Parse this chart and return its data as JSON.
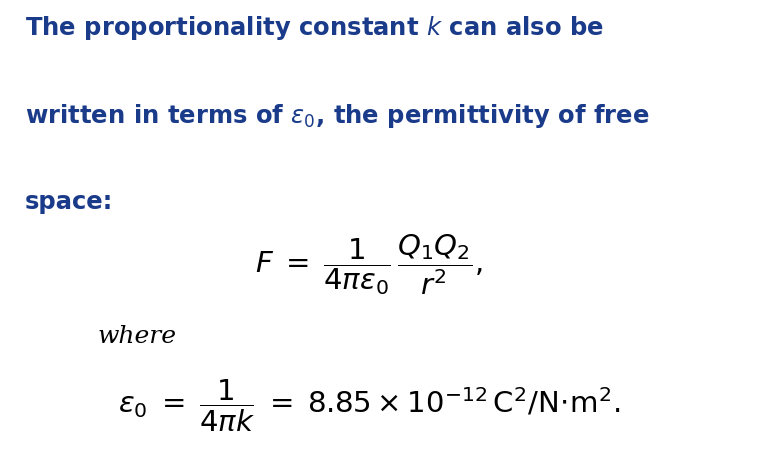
{
  "background_color": "#ffffff",
  "title_color": "#1a3a8a",
  "formula_color": "#000000",
  "heading_fontsize": 17.5,
  "formula_fontsize": 21,
  "where_fontsize": 18,
  "fig_width": 7.78,
  "fig_height": 4.51,
  "dpi": 100
}
